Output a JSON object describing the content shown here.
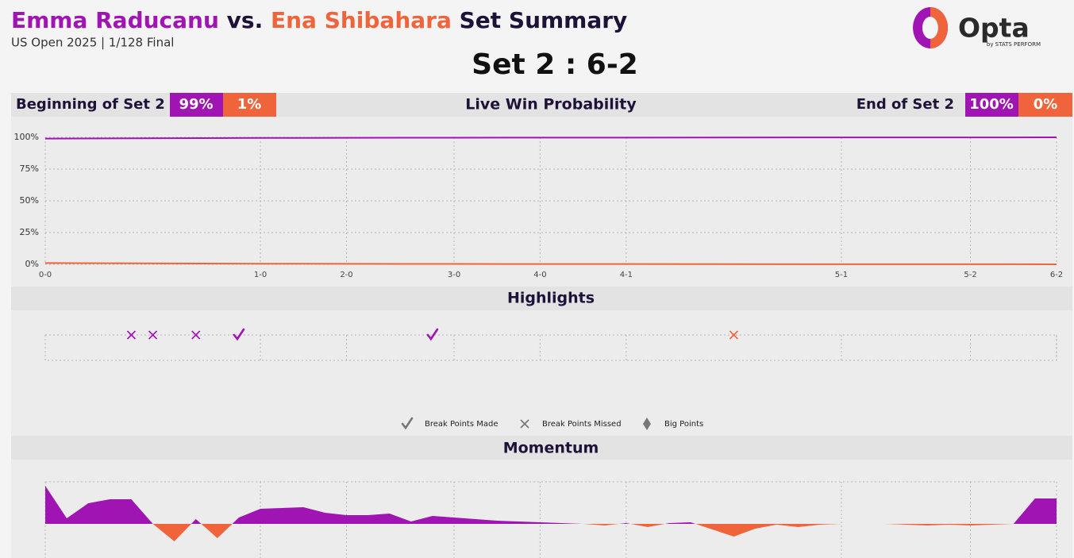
{
  "header": {
    "player1": "Emma Raducanu",
    "vs": "vs.",
    "player2": "Ena Shibahara",
    "suffix": "Set Summary",
    "subtitle": "US Open 2025 | 1/128 Final",
    "set_score": "Set 2 : 6-2",
    "logo": "Opta",
    "logo_sub": "by STATS PERFORM"
  },
  "chart_data": [
    {
      "type": "line",
      "title": "Live Win Probability",
      "start": {
        "label": "Beginning of Set 2",
        "values": [
          99,
          1
        ],
        "value_labels": [
          "99%",
          "1%"
        ]
      },
      "end": {
        "label": "End of Set 2",
        "values": [
          100,
          0
        ],
        "value_labels": [
          "100%",
          "0%"
        ]
      },
      "x": [
        0,
        10,
        14,
        19,
        23,
        27,
        37,
        43,
        47
      ],
      "series": [
        {
          "name": "Emma Raducanu",
          "color": "#a014b4",
          "values": [
            99,
            99.5,
            99.6,
            99.7,
            99.8,
            99.8,
            99.9,
            99.9,
            100
          ]
        },
        {
          "name": "Ena Shibahara",
          "color": "#f0643c",
          "values": [
            1,
            0.5,
            0.4,
            0.3,
            0.2,
            0.2,
            0.1,
            0.1,
            0
          ]
        }
      ],
      "xlim": [
        0,
        47
      ],
      "xticks": [
        {
          "value": 0,
          "label": "0-0"
        },
        {
          "value": 10,
          "label": "1-0"
        },
        {
          "value": 14,
          "label": "2-0"
        },
        {
          "value": 19,
          "label": "3-0"
        },
        {
          "value": 23,
          "label": "4-0"
        },
        {
          "value": 27,
          "label": "4-1"
        },
        {
          "value": 37,
          "label": "5-1"
        },
        {
          "value": 43,
          "label": "5-2"
        },
        {
          "value": 47,
          "label": "6-2"
        }
      ],
      "ylim": [
        0,
        100
      ],
      "yticks": [
        {
          "value": 0,
          "label": "0%"
        },
        {
          "value": 25,
          "label": "25%"
        },
        {
          "value": 50,
          "label": "50%"
        },
        {
          "value": 75,
          "label": "75%"
        },
        {
          "value": 100,
          "label": "100%"
        }
      ],
      "grid": true
    },
    {
      "type": "scatter",
      "title": "Highlights",
      "legend_color": "#777777",
      "series": [
        {
          "name": "Break Points Made",
          "marker": "check",
          "x": [
            9,
            18
          ],
          "colors": [
            "#a014b4",
            "#a014b4"
          ]
        },
        {
          "name": "Break Points Missed",
          "marker": "cross",
          "x": [
            4,
            5,
            7,
            32
          ],
          "colors": [
            "#a014b4",
            "#a014b4",
            "#a014b4",
            "#f0643c"
          ]
        },
        {
          "name": "Big Points",
          "marker": "diamond",
          "x": [],
          "colors": []
        }
      ]
    },
    {
      "type": "area",
      "title": "Momentum",
      "color": "#a014b4",
      "negative_color": "#f0643c",
      "x": [
        0,
        1,
        2,
        3,
        4,
        5,
        6,
        7,
        8,
        9,
        10,
        11,
        12,
        13,
        14,
        15,
        16,
        17,
        18,
        19,
        20,
        21,
        22,
        23,
        24,
        25,
        26,
        27,
        28,
        29,
        30,
        31,
        32,
        33,
        34,
        35,
        36,
        37,
        38,
        39,
        40,
        41,
        42,
        43,
        44,
        45,
        46,
        47
      ],
      "values": [
        0.96,
        0.14,
        0.52,
        0.62,
        0.62,
        0,
        -0.44,
        0.12,
        -0.36,
        0.16,
        0.38,
        0.4,
        0.42,
        0.28,
        0.22,
        0.22,
        0.26,
        0.06,
        0.2,
        0.16,
        0.12,
        0.08,
        0.06,
        0.04,
        0.02,
        0,
        -0.04,
        0.02,
        -0.08,
        0.02,
        0.04,
        -0.14,
        -0.32,
        -0.12,
        -0.02,
        -0.08,
        -0.02,
        0,
        0,
        0,
        -0.02,
        -0.04,
        -0.02,
        -0.04,
        -0.02,
        0,
        0.64,
        0.64
      ],
      "ylim": [
        -1.1,
        1.1
      ]
    }
  ]
}
